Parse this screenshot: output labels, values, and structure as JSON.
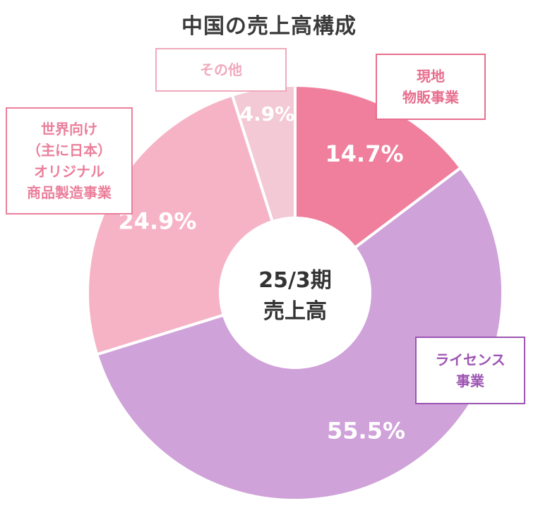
{
  "chart_data": {
    "type": "pie",
    "title": "中国の売上高構成",
    "center_label": [
      "25/3期",
      "売上高"
    ],
    "slices": [
      {
        "label_lines": [
          "現地",
          "物販事業"
        ],
        "value": 14.7,
        "value_label": "14.7%",
        "color": "#ef7f9c"
      },
      {
        "label_lines": [
          "ライセンス",
          "事業"
        ],
        "value": 55.5,
        "value_label": "55.5%",
        "color": "#cfa2d9"
      },
      {
        "label_lines": [
          "世界向け",
          "（主に日本）",
          "オリジナル",
          "商品製造事業"
        ],
        "value": 24.9,
        "value_label": "24.9%",
        "color": "#f6b3c6"
      },
      {
        "label_lines": [
          "その他"
        ],
        "value": 4.9,
        "value_label": "4.9%",
        "color": "#f2c9d5"
      }
    ],
    "start_angle_deg": 0,
    "direction": "clockwise",
    "inner_hole": true
  }
}
